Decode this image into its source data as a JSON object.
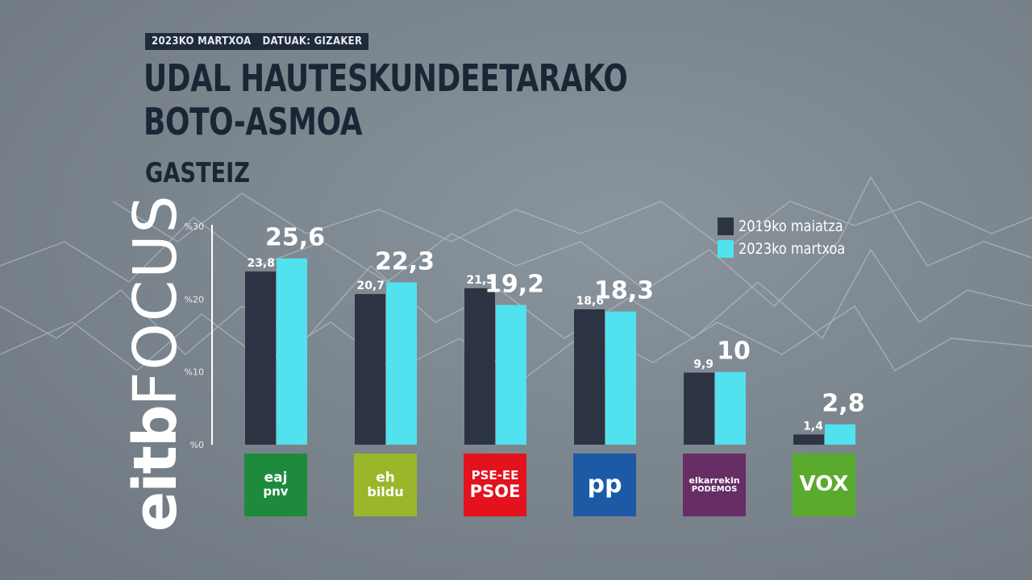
{
  "header": {
    "date": "2023KO MARTXOA",
    "source": "DATUAK: GIZAKER",
    "title_line1": "UDAL HAUTESKUNDEETARAKO",
    "title_line2": "BOTO-ASMOA",
    "subtitle": "GASTEIZ"
  },
  "brand": {
    "logo_eitb": "eitb",
    "logo_focus": "FOCUS"
  },
  "colors": {
    "series_2019": "#2c3444",
    "series_2023": "#52e1ee",
    "background": "#7c868e",
    "title": "#1b2535"
  },
  "parties": [
    {
      "name": "EAJ-PNV",
      "logo_l1": "eaj",
      "logo_l2": "pnv",
      "bg": "#1e8a3c",
      "icon": "pnv-leaf-icon"
    },
    {
      "name": "EH Bildu",
      "logo_l1": "eh",
      "logo_l2": "bildu",
      "bg": "#9ab62a",
      "icon": "ehbildu-logo"
    },
    {
      "name": "PSE-EE PSOE",
      "logo_l1": "PSE-EE",
      "logo_l2": "PSOE",
      "bg": "#e3121d",
      "icon": "psoe-logo"
    },
    {
      "name": "PP",
      "logo_l1": "pp",
      "logo_l2": "",
      "bg": "#1d5aa6",
      "icon": "pp-logo"
    },
    {
      "name": "Elkarrekin Podemos",
      "logo_l1": "elkarrekin",
      "logo_l2": "PODEMOS",
      "bg": "#662e65",
      "icon": "podemos-dots-icon"
    },
    {
      "name": "VOX",
      "logo_l1": "VOX",
      "logo_l2": "",
      "bg": "#5aaa2e",
      "icon": "vox-logo"
    }
  ],
  "chart_data": {
    "type": "bar",
    "categories": [
      "EAJ-PNV",
      "EH Bildu",
      "PSE-EE PSOE",
      "PP",
      "Elkarrekin Podemos",
      "VOX"
    ],
    "series": [
      {
        "name": "2019ko maiatza",
        "values": [
          23.8,
          20.7,
          21.5,
          18.6,
          9.9,
          1.4
        ],
        "labels": [
          "23,8",
          "20,7",
          "21,5",
          "18,6",
          "9,9",
          "1,4"
        ]
      },
      {
        "name": "2023ko martxoa",
        "values": [
          25.6,
          22.3,
          19.2,
          18.3,
          10,
          2.8
        ],
        "labels": [
          "25,6",
          "22,3",
          "19,2",
          "18,3",
          "10",
          "2,8"
        ]
      }
    ],
    "ylim": [
      0,
      30
    ],
    "yticks": [
      0,
      10,
      20,
      30
    ],
    "ytick_labels": [
      "%0",
      "%10",
      "%20",
      "%30"
    ],
    "legend": "top-right",
    "grid": false
  }
}
